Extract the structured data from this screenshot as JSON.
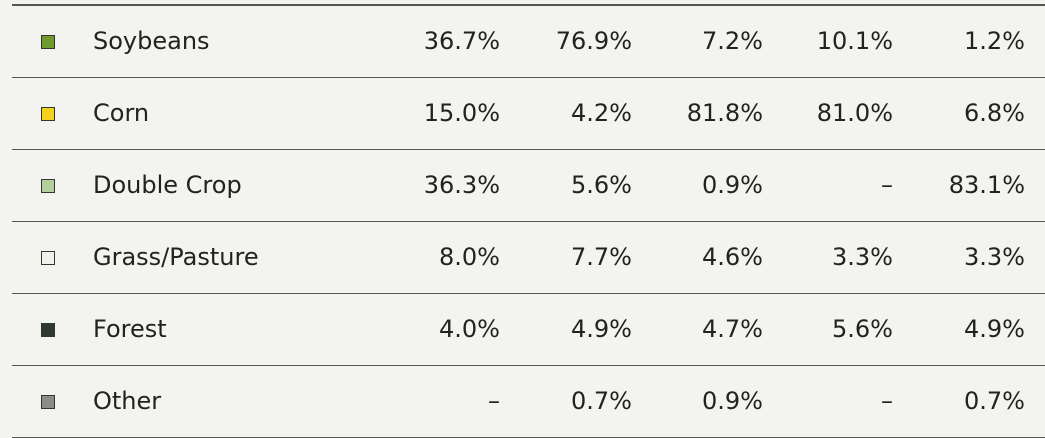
{
  "table": {
    "rows": [
      {
        "color": "#6f9a2c",
        "label": "Soybeans",
        "cells": [
          "36.7%",
          "76.9%",
          "7.2%",
          "10.1%",
          "1.2%"
        ]
      },
      {
        "color": "#f2d21a",
        "label": "Corn",
        "cells": [
          "15.0%",
          "4.2%",
          "81.8%",
          "81.0%",
          "6.8%"
        ]
      },
      {
        "color": "#b3cf9a",
        "label": "Double Crop",
        "cells": [
          "36.3%",
          "5.6%",
          "0.9%",
          "–",
          "83.1%"
        ]
      },
      {
        "color": "#f1f1ea",
        "label": "Grass/Pasture",
        "cells": [
          "8.0%",
          "7.7%",
          "4.6%",
          "3.3%",
          "3.3%"
        ]
      },
      {
        "color": "#2e3a2e",
        "label": "Forest",
        "cells": [
          "4.0%",
          "4.9%",
          "4.7%",
          "5.6%",
          "4.9%"
        ]
      },
      {
        "color": "#8c8c88",
        "label": "Other",
        "cells": [
          "–",
          "0.7%",
          "0.9%",
          "–",
          "0.7%"
        ]
      }
    ]
  }
}
